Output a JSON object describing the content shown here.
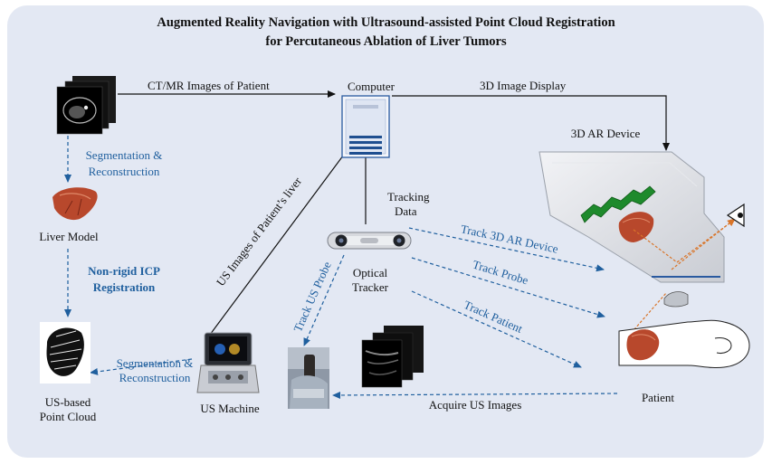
{
  "title": {
    "line1": "Augmented Reality Navigation with Ultrasound-assisted Point Cloud Registration",
    "line2": "for Percutaneous Ablation of Liver Tumors"
  },
  "nodes": {
    "computer": "Computer",
    "ar_device": "3D AR Device",
    "liver_model": "Liver Model",
    "us_machine": "US Machine",
    "point_cloud": {
      "line1": "US-based",
      "line2": "Point Cloud"
    },
    "optical_tracker": {
      "line1": "Optical",
      "line2": "Tracker"
    },
    "patient": "Patient"
  },
  "edges": {
    "ct_mr": "CT/MR Images of Patient",
    "display_3d": "3D Image Display",
    "segmentation_1": {
      "line1": "Segmentation &",
      "line2": "Reconstruction"
    },
    "non_rigid_icp": {
      "line1": "Non-rigid ICP",
      "line2": "Registration"
    },
    "segmentation_2": {
      "line1": "Segmentation &",
      "line2": "Reconstruction"
    },
    "us_images_liver": "US Images of Patient’s liver",
    "tracking_data": {
      "line1": "Tracking",
      "line2": "Data"
    },
    "track_ar": "Track 3D AR Device",
    "track_probe": "Track Probe",
    "track_patient": "Track Patient",
    "track_us_probe": "Track US Probe",
    "acquire_us": "Acquire US Images"
  },
  "colors": {
    "panel": "#e3e8f3",
    "dashed_blue": "#1f5f9e",
    "solid_black": "#111111",
    "ar_green": "#1e8a2c",
    "liver_red": "#b8482c",
    "orange_dash": "#d9752a"
  }
}
